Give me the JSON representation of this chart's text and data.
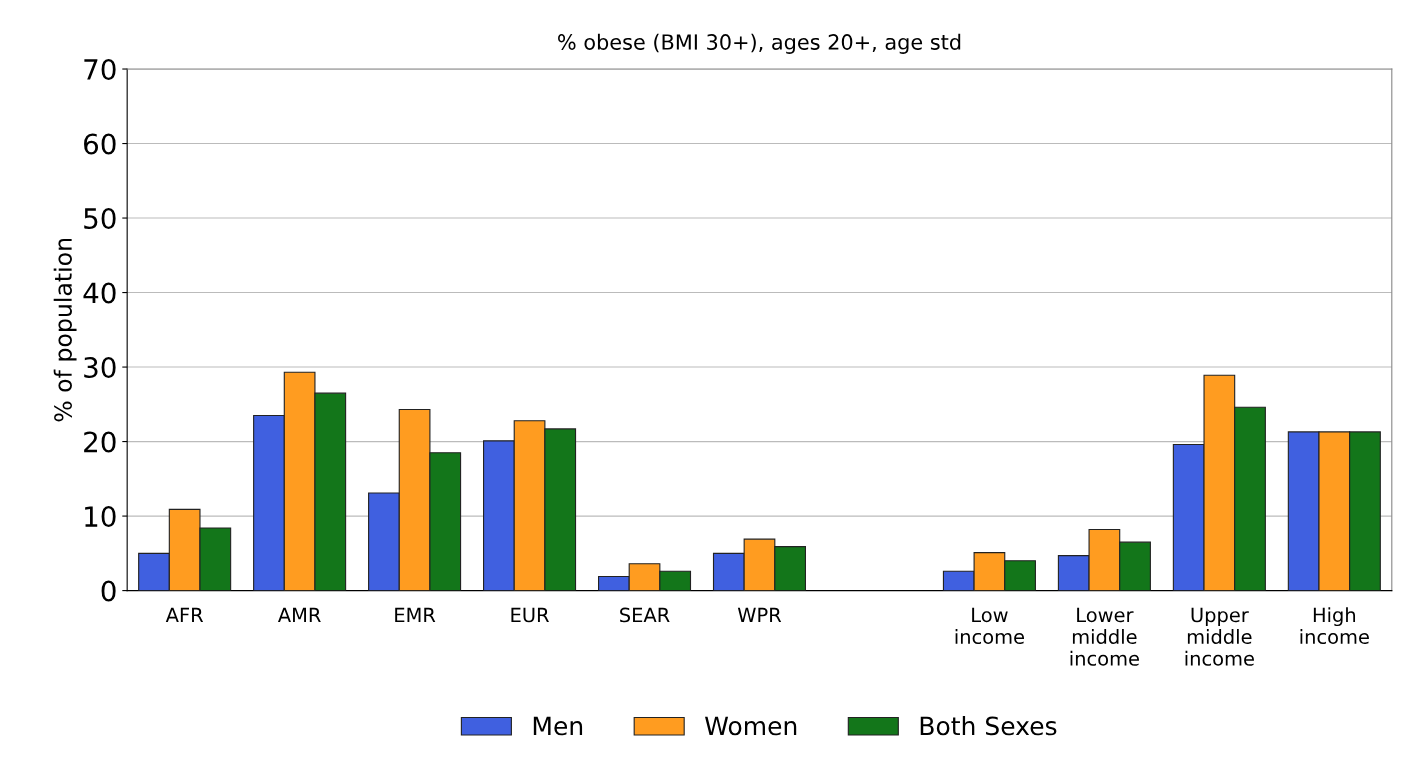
{
  "chart_data": {
    "type": "bar",
    "title": "% obese (BMI 30+), ages 20+, age std",
    "ylabel": "% of population",
    "categories": [
      "AFR",
      "AMR",
      "EMR",
      "EUR",
      "SEAR",
      "WPR",
      null,
      "Low\nincome",
      "Lower\nmiddle\nincome",
      "Upper\nmiddle\nincome",
      "High\nincome"
    ],
    "series": [
      {
        "name": "Men",
        "color": "#4060e0",
        "values": [
          5.0,
          23.5,
          13.1,
          20.1,
          1.9,
          5.0,
          null,
          2.6,
          4.7,
          19.6,
          21.3
        ]
      },
      {
        "name": "Women",
        "color": "#ff9c20",
        "values": [
          10.9,
          29.3,
          24.3,
          22.8,
          3.6,
          6.9,
          null,
          5.1,
          8.2,
          28.9,
          21.3
        ]
      },
      {
        "name": "Both Sexes",
        "color": "#13761a",
        "values": [
          8.4,
          26.5,
          18.5,
          21.7,
          2.6,
          5.9,
          null,
          4.0,
          6.5,
          24.6,
          21.3
        ]
      }
    ],
    "ylim": [
      0,
      70
    ],
    "yticks": [
      0,
      10,
      20,
      30,
      40,
      50,
      60,
      70
    ],
    "grid": "y",
    "legend": "bottom"
  }
}
